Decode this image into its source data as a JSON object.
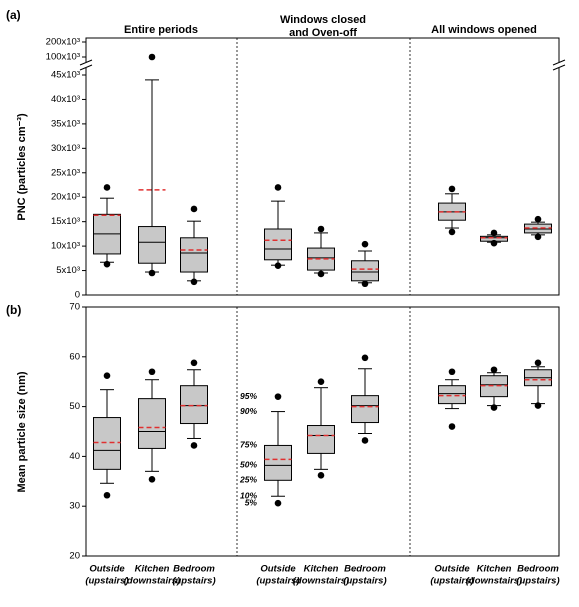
{
  "chart_data": [
    {
      "type": "box",
      "panel": "(a)",
      "ylabel": "PNC (particles cm⁻³)",
      "groups": [
        [
          "Entire periods"
        ],
        [
          "Windows closed",
          "and Oven-off"
        ],
        [
          "All windows opened"
        ]
      ],
      "ylim": [
        0,
        200000
      ],
      "axis_break": [
        45000,
        100000
      ],
      "yticks": [
        0,
        {
          "value": 5000,
          "label": "5x10³"
        },
        {
          "value": 10000,
          "label": "10x10³"
        },
        {
          "value": 15000,
          "label": "15x10³"
        },
        {
          "value": 20000,
          "label": "20x10³"
        },
        {
          "value": 25000,
          "label": "25x10³"
        },
        {
          "value": 30000,
          "label": "30x10³"
        },
        {
          "value": 35000,
          "label": "35x10³"
        },
        {
          "value": 40000,
          "label": "40x10³"
        },
        {
          "value": 45000,
          "label": "45x10³"
        },
        {
          "value": 100000,
          "label": "100x10³"
        },
        {
          "value": 200000,
          "label": "200x10³"
        }
      ],
      "box_color": "#c8c8c8",
      "mean_color": "#e03030",
      "boxes": [
        {
          "low_outlier": 6300,
          "whislo": 6700,
          "q1": 8400,
          "med": 12500,
          "q3": 16500,
          "whishi": 19800,
          "high_outlier": 22000,
          "mean": 16300
        },
        {
          "low_outlier": 4500,
          "whislo": 4700,
          "q1": 6500,
          "med": 10800,
          "q3": 14000,
          "whishi": 44000,
          "high_outlier": 100000,
          "mean": 21500
        },
        {
          "low_outlier": 2700,
          "whislo": 2900,
          "q1": 4700,
          "med": 8600,
          "q3": 11700,
          "whishi": 15100,
          "high_outlier": 17600,
          "mean": 9200
        },
        {
          "low_outlier": 6000,
          "whislo": 6100,
          "q1": 7200,
          "med": 9400,
          "q3": 13500,
          "whishi": 19200,
          "high_outlier": 22000,
          "mean": 11200
        },
        {
          "low_outlier": 4300,
          "whislo": 4500,
          "q1": 5100,
          "med": 7600,
          "q3": 9600,
          "whishi": 12700,
          "high_outlier": 13500,
          "mean": 7400
        },
        {
          "low_outlier": 2300,
          "whislo": 2500,
          "q1": 2900,
          "med": 4700,
          "q3": 7000,
          "whishi": 9000,
          "high_outlier": 10400,
          "mean": 5300
        },
        {
          "low_outlier": 12900,
          "whislo": 13700,
          "q1": 15300,
          "med": 17000,
          "q3": 18800,
          "whishi": 20700,
          "high_outlier": 21700,
          "mean": 17000
        },
        {
          "low_outlier": 10600,
          "whislo": 10800,
          "q1": 11000,
          "med": 11700,
          "q3": 12000,
          "whishi": 12300,
          "high_outlier": 12700,
          "mean": 11700
        },
        {
          "low_outlier": 11900,
          "whislo": 12300,
          "q1": 12700,
          "med": 13500,
          "q3": 14500,
          "whishi": 14900,
          "high_outlier": 15500,
          "mean": 13700
        }
      ]
    },
    {
      "type": "box",
      "panel": "(b)",
      "ylabel": "Mean particle size (nm)",
      "categories": [
        [
          "Outside",
          "(upstairs)"
        ],
        [
          "Kitchen",
          "(downstairs)"
        ],
        [
          "Bedroom",
          "(upstairs)"
        ],
        [
          "Outside",
          "(upstairs)"
        ],
        [
          "Kitchen",
          "(downstairs)"
        ],
        [
          "Bedroom",
          "(upstairs)"
        ],
        [
          "Outside",
          "(upstairs)"
        ],
        [
          "Kitchen",
          "(downstairs)"
        ],
        [
          "Bedroom",
          "(upstairs)"
        ]
      ],
      "ylim": [
        20,
        70
      ],
      "yticks": [
        20,
        30,
        40,
        50,
        60,
        70
      ],
      "box_color": "#c8c8c8",
      "mean_color": "#e03030",
      "percentile_labels": [
        "95%",
        "90%",
        "75%",
        "50%",
        "25%",
        "10%",
        "5%"
      ],
      "boxes": [
        {
          "low_outlier": 32.2,
          "whislo": 34.6,
          "q1": 37.4,
          "med": 41.2,
          "q3": 47.8,
          "whishi": 53.4,
          "high_outlier": 56.2,
          "mean": 42.8
        },
        {
          "low_outlier": 35.4,
          "whislo": 37,
          "q1": 41.6,
          "med": 45,
          "q3": 51.6,
          "whishi": 55.4,
          "high_outlier": 57,
          "mean": 45.8
        },
        {
          "low_outlier": 42.2,
          "whislo": 43.6,
          "q1": 46.6,
          "med": 50.2,
          "q3": 54.2,
          "whishi": 57.4,
          "high_outlier": 58.8,
          "mean": 50.2
        },
        {
          "low_outlier": 30.6,
          "whislo": 32,
          "q1": 35.2,
          "med": 38.2,
          "q3": 42.2,
          "whishi": 49,
          "high_outlier": 52,
          "mean": 39.4
        },
        {
          "low_outlier": 36.2,
          "whislo": 37.4,
          "q1": 40.6,
          "med": 44.2,
          "q3": 46.2,
          "whishi": 53.8,
          "high_outlier": 55,
          "mean": 44.2
        },
        {
          "low_outlier": 43.2,
          "whislo": 44.6,
          "q1": 46.8,
          "med": 50.2,
          "q3": 52.2,
          "whishi": 57.6,
          "high_outlier": 59.8,
          "mean": 50
        },
        {
          "low_outlier": 46,
          "whislo": 49.6,
          "q1": 50.6,
          "med": 52.6,
          "q3": 54.2,
          "whishi": 55.4,
          "high_outlier": 57,
          "mean": 52.2
        },
        {
          "low_outlier": 49.8,
          "whislo": 50.2,
          "q1": 52,
          "med": 54.4,
          "q3": 56.2,
          "whishi": 56.8,
          "high_outlier": 57.4,
          "mean": 54.2
        },
        {
          "low_outlier": 50.2,
          "whislo": 50.6,
          "q1": 54.2,
          "med": 55.8,
          "q3": 57.4,
          "whishi": 58,
          "high_outlier": 58.8,
          "mean": 55.4
        }
      ]
    }
  ]
}
